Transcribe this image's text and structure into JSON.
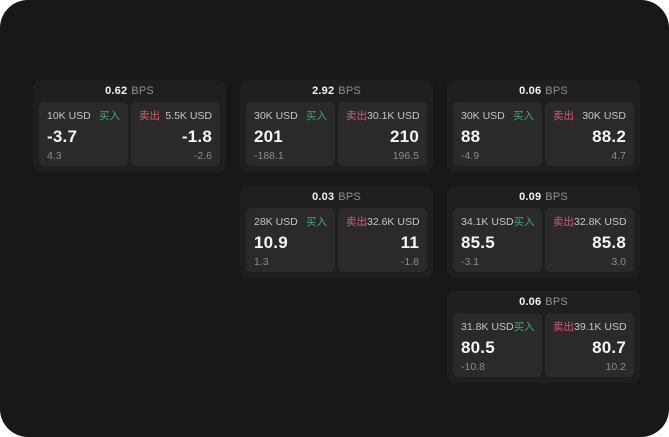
{
  "labels": {
    "buy": "买入",
    "sell": "卖出",
    "bps_suffix": "BPS"
  },
  "colors": {
    "buy_green": "#3fae68",
    "sell_red": "#d85a6e",
    "canvas_bg": "#181818",
    "card_bg": "#1f1f1f",
    "panel_bg": "#2a2a2a"
  },
  "cards": [
    {
      "row": 1,
      "col": 1,
      "bps": "0.62",
      "buy_amount": "10K USD",
      "buy_value": "-3.7",
      "buy_sub": "4.3",
      "sell_amount": "5.5K USD",
      "sell_value": "-1.8",
      "sell_sub": "-2.6"
    },
    {
      "row": 1,
      "col": 2,
      "bps": "2.92",
      "buy_amount": "30K USD",
      "buy_value": "201",
      "buy_sub": "-188.1",
      "sell_amount": "30.1K USD",
      "sell_value": "210",
      "sell_sub": "196.5"
    },
    {
      "row": 1,
      "col": 3,
      "bps": "0.06",
      "buy_amount": "30K USD",
      "buy_value": "88",
      "buy_sub": "-4.9",
      "sell_amount": "30K USD",
      "sell_value": "88.2",
      "sell_sub": "4.7"
    },
    {
      "row": 2,
      "col": 2,
      "bps": "0.03",
      "buy_amount": "28K USD",
      "buy_value": "10.9",
      "buy_sub": "1.3",
      "sell_amount": "32.6K USD",
      "sell_value": "11",
      "sell_sub": "-1.8"
    },
    {
      "row": 2,
      "col": 3,
      "bps": "0.09",
      "buy_amount": "34.1K USD",
      "buy_value": "85.5",
      "buy_sub": "-3.1",
      "sell_amount": "32.8K USD",
      "sell_value": "85.8",
      "sell_sub": "3.0"
    },
    {
      "row": 3,
      "col": 3,
      "bps": "0.06",
      "buy_amount": "31.8K USD",
      "buy_value": "80.5",
      "buy_sub": "-10.8",
      "sell_amount": "39.1K USD",
      "sell_value": "80.7",
      "sell_sub": "10.2"
    }
  ]
}
